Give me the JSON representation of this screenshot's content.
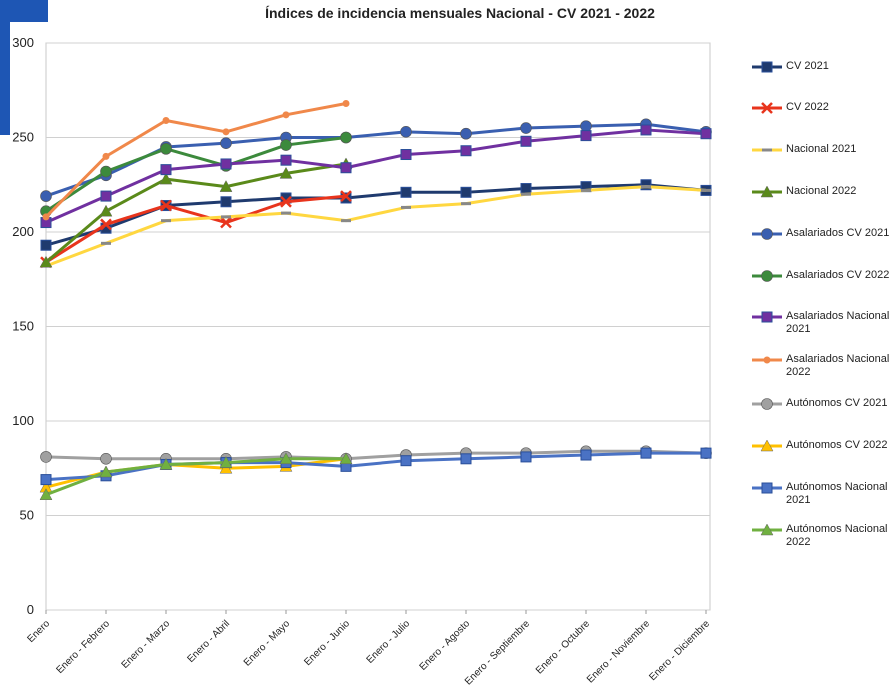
{
  "chart_data": {
    "type": "line",
    "title": "Índices de incidencia mensuales Nacional - CV 2021 - 2022",
    "categories": [
      "Enero",
      "Enero - Febrero",
      "Enero - Marzo",
      "Enero - Abril",
      "Enero - Mayo",
      "Enero - Junio",
      "Enero - Julio",
      "Enero - Agosto",
      "Enero - Septiembre",
      "Enero - Octubre",
      "Enero - Noviembre",
      "Enero - Diciembre"
    ],
    "ylim": [
      0,
      300
    ],
    "yticks": [
      0,
      50,
      100,
      150,
      200,
      250,
      300
    ],
    "grid": true,
    "legend": "right",
    "series": [
      {
        "name": "CV 2021",
        "color": "#1f3a6e",
        "marker": "square",
        "values": [
          193,
          202,
          214,
          216,
          218,
          218,
          221,
          221,
          223,
          224,
          225,
          222
        ]
      },
      {
        "name": "CV 2022",
        "color": "#e8341c",
        "marker": "x",
        "values": [
          184,
          204,
          214,
          205,
          216,
          219,
          null,
          null,
          null,
          null,
          null,
          null
        ]
      },
      {
        "name": "Nacional 2021",
        "color": "#ffd740",
        "marker": "dash",
        "values": [
          182,
          194,
          206,
          208,
          210,
          206,
          213,
          215,
          220,
          222,
          224,
          222
        ]
      },
      {
        "name": "Nacional 2022",
        "color": "#5a8a1a",
        "marker": "triangle",
        "values": [
          184,
          211,
          228,
          224,
          231,
          236,
          null,
          null,
          null,
          null,
          null,
          null
        ]
      },
      {
        "name": "Asalariados CV 2021",
        "color": "#3a5fb0",
        "marker": "circle",
        "values": [
          219,
          230,
          245,
          247,
          250,
          250,
          253,
          252,
          255,
          256,
          257,
          253
        ]
      },
      {
        "name": "Asalariados CV 2022",
        "color": "#3c8a3c",
        "marker": "circle",
        "values": [
          211,
          232,
          244,
          235,
          246,
          250,
          null,
          null,
          null,
          null,
          null,
          null
        ]
      },
      {
        "name": "Asalariados Nacional 2021",
        "color": "#7030a0",
        "marker": "square",
        "values": [
          205,
          219,
          233,
          236,
          238,
          234,
          241,
          243,
          248,
          251,
          254,
          252
        ]
      },
      {
        "name": "Asalariados Nacional 2022",
        "color": "#f0884a",
        "marker": "dot",
        "values": [
          208,
          240,
          259,
          253,
          262,
          268,
          null,
          null,
          null,
          null,
          null,
          null
        ]
      },
      {
        "name": "Autónomos  CV 2021",
        "color": "#a0a0a0",
        "marker": "circle",
        "values": [
          81,
          80,
          80,
          80,
          81,
          80,
          82,
          83,
          83,
          84,
          84,
          83
        ]
      },
      {
        "name": "Autónomos  CV 2022",
        "color": "#ffc000",
        "marker": "triangle",
        "values": [
          65,
          73,
          77,
          75,
          76,
          80,
          null,
          null,
          null,
          null,
          null,
          null
        ]
      },
      {
        "name": "Autónomos  Nacional 2021",
        "color": "#4a72c4",
        "marker": "square",
        "values": [
          69,
          71,
          77,
          78,
          78,
          76,
          79,
          80,
          81,
          82,
          83,
          83
        ]
      },
      {
        "name": "Autónomos  Nacional 2022",
        "color": "#70b040",
        "marker": "triangle",
        "values": [
          61,
          73,
          77,
          78,
          80,
          80,
          null,
          null,
          null,
          null,
          null,
          null
        ]
      }
    ]
  }
}
